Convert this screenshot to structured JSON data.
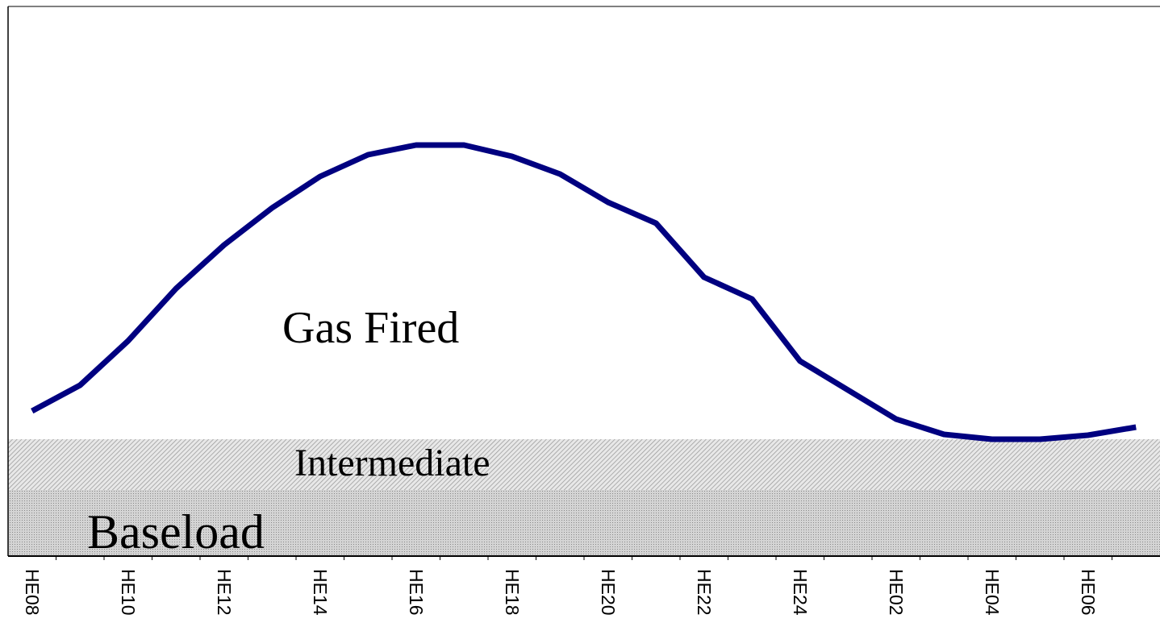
{
  "chart_data": {
    "type": "line",
    "categories": [
      "HE08",
      null,
      "HE10",
      null,
      "HE12",
      null,
      "HE14",
      null,
      "HE16",
      null,
      "HE18",
      null,
      "HE20",
      null,
      "HE22",
      null,
      "HE24",
      null,
      "HE02",
      null,
      "HE04",
      null,
      "HE06",
      null
    ],
    "series": [
      {
        "color": "#000080",
        "values": [
          180,
          212,
          267,
          332,
          386,
          432,
          471,
          498,
          510,
          510,
          496,
          474,
          439,
          413,
          346,
          319,
          242,
          206,
          170,
          151,
          145,
          145,
          150,
          160
        ]
      }
    ],
    "ylim": [
      0,
      682
    ],
    "bands": [
      {
        "label": "Intermediate",
        "range": [
          82,
          145
        ]
      },
      {
        "label": "Baseload",
        "range": [
          0,
          82
        ]
      }
    ],
    "annotations": [
      "Gas Fired"
    ]
  }
}
